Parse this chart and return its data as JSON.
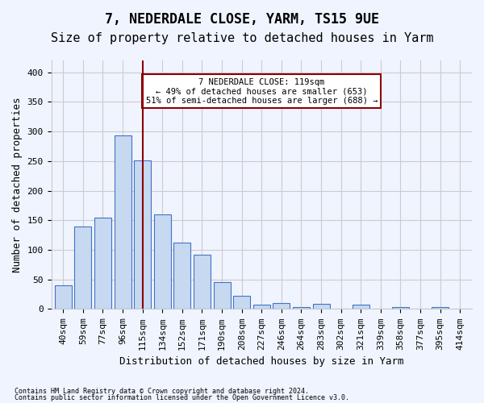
{
  "title1": "7, NEDERDALE CLOSE, YARM, TS15 9UE",
  "title2": "Size of property relative to detached houses in Yarm",
  "xlabel": "Distribution of detached houses by size in Yarm",
  "ylabel": "Number of detached properties",
  "footnote1": "Contains HM Land Registry data © Crown copyright and database right 2024.",
  "footnote2": "Contains public sector information licensed under the Open Government Licence v3.0.",
  "bar_labels": [
    "40sqm",
    "59sqm",
    "77sqm",
    "96sqm",
    "115sqm",
    "134sqm",
    "152sqm",
    "171sqm",
    "190sqm",
    "208sqm",
    "227sqm",
    "246sqm",
    "264sqm",
    "283sqm",
    "302sqm",
    "321sqm",
    "339sqm",
    "358sqm",
    "377sqm",
    "395sqm",
    "414sqm"
  ],
  "bar_values": [
    40,
    140,
    155,
    293,
    251,
    160,
    112,
    92,
    46,
    23,
    8,
    10,
    4,
    9,
    1,
    8,
    1,
    3,
    1,
    3,
    1
  ],
  "bar_color": "#c6d9f1",
  "bar_edge_color": "#4472c4",
  "vline_x_index": 4,
  "vline_color": "#8B0000",
  "annotation_text": "7 NEDERDALE CLOSE: 119sqm\n← 49% of detached houses are smaller (653)\n51% of semi-detached houses are larger (688) →",
  "annotation_box_color": "white",
  "annotation_box_edge": "#8B0000",
  "ylim": [
    0,
    420
  ],
  "yticks": [
    0,
    50,
    100,
    150,
    200,
    250,
    300,
    350,
    400
  ],
  "grid_color": "#cccccc",
  "bg_color": "#f0f4ff",
  "title_fontsize": 12,
  "subtitle_fontsize": 11,
  "axis_fontsize": 9,
  "tick_fontsize": 8
}
